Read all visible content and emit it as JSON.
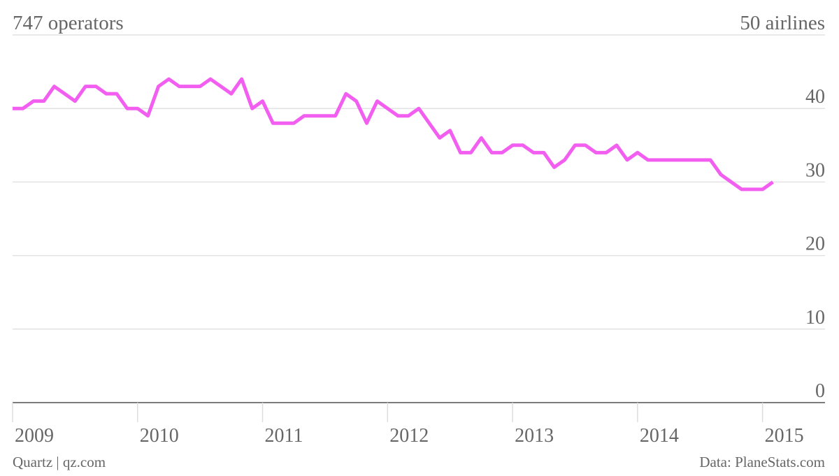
{
  "chart_data": {
    "type": "line",
    "title": "747 operators",
    "source": "Data: PlaneStats.com",
    "credit": "Quartz | qz.com",
    "x": [
      2009,
      2009.083,
      2009.167,
      2009.25,
      2009.333,
      2009.417,
      2009.5,
      2009.583,
      2009.667,
      2009.75,
      2009.833,
      2009.917,
      2010,
      2010.083,
      2010.167,
      2010.25,
      2010.333,
      2010.417,
      2010.5,
      2010.583,
      2010.667,
      2010.75,
      2010.833,
      2010.917,
      2011,
      2011.083,
      2011.167,
      2011.25,
      2011.333,
      2011.417,
      2011.5,
      2011.583,
      2011.667,
      2011.75,
      2011.833,
      2011.917,
      2012,
      2012.083,
      2012.167,
      2012.25,
      2012.333,
      2012.417,
      2012.5,
      2012.583,
      2012.667,
      2012.75,
      2012.833,
      2012.917,
      2013,
      2013.083,
      2013.167,
      2013.25,
      2013.333,
      2013.417,
      2013.5,
      2013.583,
      2013.667,
      2013.75,
      2013.833,
      2013.917,
      2014,
      2014.083,
      2014.167,
      2014.25,
      2014.333,
      2014.417,
      2014.5,
      2014.583,
      2014.667,
      2014.75,
      2014.833,
      2014.917,
      2015,
      2015.083
    ],
    "series": [
      {
        "name": "747 operators",
        "color": "#f25ff0",
        "values": [
          40,
          40,
          41,
          41,
          43,
          42,
          41,
          43,
          43,
          42,
          42,
          40,
          40,
          39,
          43,
          44,
          43,
          43,
          43,
          44,
          43,
          42,
          44,
          40,
          41,
          38,
          38,
          38,
          39,
          39,
          39,
          39,
          42,
          41,
          38,
          41,
          40,
          39,
          39,
          40,
          38,
          36,
          37,
          34,
          34,
          36,
          34,
          34,
          35,
          35,
          34,
          34,
          32,
          33,
          35,
          35,
          34,
          34,
          35,
          33,
          34,
          33,
          33,
          33,
          33,
          33,
          33,
          33,
          31,
          30,
          29,
          29,
          29,
          30
        ]
      }
    ],
    "xlim": [
      2009,
      2015.5
    ],
    "xticks": [
      2009,
      2010,
      2011,
      2012,
      2013,
      2014,
      2015
    ],
    "ylim": [
      0,
      50
    ],
    "yticks": [
      0,
      10,
      20,
      30,
      40,
      {
        "value": 50,
        "label": "50 airlines"
      }
    ],
    "grid": true
  }
}
